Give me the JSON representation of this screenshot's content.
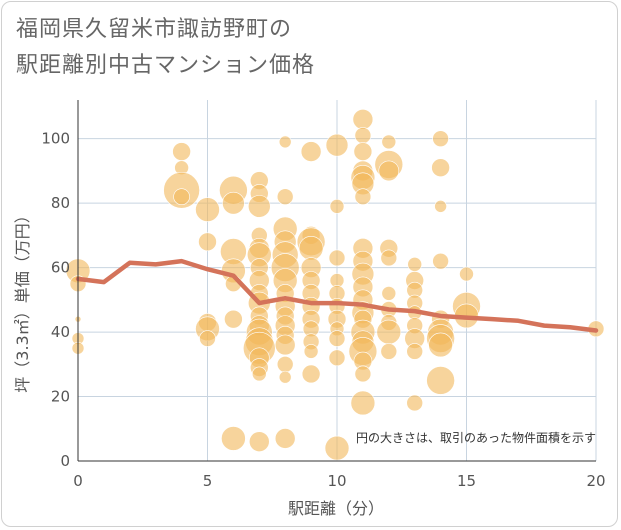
{
  "chart_data": {
    "type": "scatter",
    "title_line1": "福岡県久留米市諏訪野町の",
    "title_line2": "駅距離別中古マンション価格",
    "xlabel": "駅距離（分）",
    "ylabel": "坪（3.3㎡）単価（万円）",
    "note": "円の大きさは、取引のあった物件面積を示す",
    "xlim": [
      0,
      20
    ],
    "ylim": [
      0,
      112
    ],
    "xticks": [
      0,
      5,
      10,
      15,
      20
    ],
    "yticks": [
      0,
      20,
      40,
      60,
      80,
      100
    ],
    "grid": true,
    "colors": {
      "bubble": "#f2b85a",
      "line": "#d4735a",
      "grid": "#c8d4e0",
      "axis": "#333333"
    },
    "points": [
      {
        "x": 0,
        "y": 59,
        "s": 12
      },
      {
        "x": 0,
        "y": 55,
        "s": 8
      },
      {
        "x": 0,
        "y": 38,
        "s": 6
      },
      {
        "x": 0,
        "y": 35,
        "s": 6
      },
      {
        "x": 0,
        "y": 44,
        "s": 3
      },
      {
        "x": 4,
        "y": 96,
        "s": 9
      },
      {
        "x": 4,
        "y": 91,
        "s": 7
      },
      {
        "x": 4,
        "y": 84,
        "s": 18
      },
      {
        "x": 4,
        "y": 82,
        "s": 8
      },
      {
        "x": 5,
        "y": 78,
        "s": 12
      },
      {
        "x": 5,
        "y": 68,
        "s": 9
      },
      {
        "x": 5,
        "y": 43,
        "s": 9
      },
      {
        "x": 5,
        "y": 41,
        "s": 12
      },
      {
        "x": 5,
        "y": 38,
        "s": 8
      },
      {
        "x": 6,
        "y": 84,
        "s": 14
      },
      {
        "x": 6,
        "y": 80,
        "s": 11
      },
      {
        "x": 6,
        "y": 65,
        "s": 13
      },
      {
        "x": 6,
        "y": 59,
        "s": 12
      },
      {
        "x": 6,
        "y": 55,
        "s": 8
      },
      {
        "x": 6,
        "y": 44,
        "s": 9
      },
      {
        "x": 6,
        "y": 7,
        "s": 12
      },
      {
        "x": 7,
        "y": 87,
        "s": 9
      },
      {
        "x": 7,
        "y": 83,
        "s": 9
      },
      {
        "x": 7,
        "y": 79,
        "s": 11
      },
      {
        "x": 7,
        "y": 70,
        "s": 8
      },
      {
        "x": 7,
        "y": 66,
        "s": 10
      },
      {
        "x": 7,
        "y": 64,
        "s": 12
      },
      {
        "x": 7,
        "y": 60,
        "s": 9
      },
      {
        "x": 7,
        "y": 56,
        "s": 10
      },
      {
        "x": 7,
        "y": 52,
        "s": 9
      },
      {
        "x": 7,
        "y": 49,
        "s": 11
      },
      {
        "x": 7,
        "y": 45,
        "s": 9
      },
      {
        "x": 7,
        "y": 42,
        "s": 10
      },
      {
        "x": 7,
        "y": 40,
        "s": 13
      },
      {
        "x": 7,
        "y": 37,
        "s": 14
      },
      {
        "x": 7,
        "y": 35,
        "s": 16
      },
      {
        "x": 7,
        "y": 32,
        "s": 10
      },
      {
        "x": 7,
        "y": 29,
        "s": 9
      },
      {
        "x": 7,
        "y": 27,
        "s": 7
      },
      {
        "x": 7,
        "y": 6,
        "s": 10
      },
      {
        "x": 8,
        "y": 99,
        "s": 6
      },
      {
        "x": 8,
        "y": 82,
        "s": 8
      },
      {
        "x": 8,
        "y": 72,
        "s": 12
      },
      {
        "x": 8,
        "y": 68,
        "s": 11
      },
      {
        "x": 8,
        "y": 64,
        "s": 13
      },
      {
        "x": 8,
        "y": 60,
        "s": 14
      },
      {
        "x": 8,
        "y": 56,
        "s": 12
      },
      {
        "x": 8,
        "y": 52,
        "s": 9
      },
      {
        "x": 8,
        "y": 48,
        "s": 10
      },
      {
        "x": 8,
        "y": 45,
        "s": 9
      },
      {
        "x": 8,
        "y": 42,
        "s": 10
      },
      {
        "x": 8,
        "y": 39,
        "s": 9
      },
      {
        "x": 8,
        "y": 36,
        "s": 10
      },
      {
        "x": 8,
        "y": 30,
        "s": 8
      },
      {
        "x": 8,
        "y": 26,
        "s": 6
      },
      {
        "x": 8,
        "y": 7,
        "s": 10
      },
      {
        "x": 9,
        "y": 96,
        "s": 10
      },
      {
        "x": 9,
        "y": 70,
        "s": 9
      },
      {
        "x": 9,
        "y": 68,
        "s": 14
      },
      {
        "x": 9,
        "y": 66,
        "s": 12
      },
      {
        "x": 9,
        "y": 60,
        "s": 10
      },
      {
        "x": 9,
        "y": 56,
        "s": 9
      },
      {
        "x": 9,
        "y": 52,
        "s": 9
      },
      {
        "x": 9,
        "y": 48,
        "s": 9
      },
      {
        "x": 9,
        "y": 44,
        "s": 9
      },
      {
        "x": 9,
        "y": 41,
        "s": 8
      },
      {
        "x": 9,
        "y": 37,
        "s": 8
      },
      {
        "x": 9,
        "y": 34,
        "s": 7
      },
      {
        "x": 9,
        "y": 27,
        "s": 9
      },
      {
        "x": 10,
        "y": 98,
        "s": 11
      },
      {
        "x": 10,
        "y": 79,
        "s": 7
      },
      {
        "x": 10,
        "y": 63,
        "s": 8
      },
      {
        "x": 10,
        "y": 56,
        "s": 7
      },
      {
        "x": 10,
        "y": 52,
        "s": 8
      },
      {
        "x": 10,
        "y": 48,
        "s": 8
      },
      {
        "x": 10,
        "y": 44,
        "s": 9
      },
      {
        "x": 10,
        "y": 41,
        "s": 7
      },
      {
        "x": 10,
        "y": 38,
        "s": 8
      },
      {
        "x": 10,
        "y": 32,
        "s": 8
      },
      {
        "x": 10,
        "y": 4,
        "s": 12
      },
      {
        "x": 11,
        "y": 106,
        "s": 10
      },
      {
        "x": 11,
        "y": 101,
        "s": 8
      },
      {
        "x": 11,
        "y": 96,
        "s": 9
      },
      {
        "x": 11,
        "y": 90,
        "s": 10
      },
      {
        "x": 11,
        "y": 88,
        "s": 12
      },
      {
        "x": 11,
        "y": 86,
        "s": 11
      },
      {
        "x": 11,
        "y": 82,
        "s": 8
      },
      {
        "x": 11,
        "y": 66,
        "s": 10
      },
      {
        "x": 11,
        "y": 62,
        "s": 10
      },
      {
        "x": 11,
        "y": 58,
        "s": 11
      },
      {
        "x": 11,
        "y": 54,
        "s": 10
      },
      {
        "x": 11,
        "y": 50,
        "s": 10
      },
      {
        "x": 11,
        "y": 46,
        "s": 11
      },
      {
        "x": 11,
        "y": 44,
        "s": 9
      },
      {
        "x": 11,
        "y": 40,
        "s": 12
      },
      {
        "x": 11,
        "y": 37,
        "s": 11
      },
      {
        "x": 11,
        "y": 34,
        "s": 14
      },
      {
        "x": 11,
        "y": 31,
        "s": 9
      },
      {
        "x": 11,
        "y": 27,
        "s": 8
      },
      {
        "x": 11,
        "y": 18,
        "s": 12
      },
      {
        "x": 12,
        "y": 99,
        "s": 7
      },
      {
        "x": 12,
        "y": 92,
        "s": 14
      },
      {
        "x": 12,
        "y": 90,
        "s": 10
      },
      {
        "x": 12,
        "y": 66,
        "s": 9
      },
      {
        "x": 12,
        "y": 63,
        "s": 8
      },
      {
        "x": 12,
        "y": 52,
        "s": 7
      },
      {
        "x": 12,
        "y": 47,
        "s": 8
      },
      {
        "x": 12,
        "y": 43,
        "s": 8
      },
      {
        "x": 12,
        "y": 40,
        "s": 12
      },
      {
        "x": 12,
        "y": 34,
        "s": 8
      },
      {
        "x": 13,
        "y": 61,
        "s": 7
      },
      {
        "x": 13,
        "y": 56,
        "s": 9
      },
      {
        "x": 13,
        "y": 53,
        "s": 8
      },
      {
        "x": 13,
        "y": 49,
        "s": 8
      },
      {
        "x": 13,
        "y": 46,
        "s": 7
      },
      {
        "x": 13,
        "y": 42,
        "s": 8
      },
      {
        "x": 13,
        "y": 38,
        "s": 10
      },
      {
        "x": 13,
        "y": 34,
        "s": 8
      },
      {
        "x": 13,
        "y": 18,
        "s": 8
      },
      {
        "x": 14,
        "y": 100,
        "s": 8
      },
      {
        "x": 14,
        "y": 91,
        "s": 9
      },
      {
        "x": 14,
        "y": 79,
        "s": 6
      },
      {
        "x": 14,
        "y": 62,
        "s": 8
      },
      {
        "x": 14,
        "y": 44,
        "s": 9
      },
      {
        "x": 14,
        "y": 40,
        "s": 13
      },
      {
        "x": 14,
        "y": 38,
        "s": 14
      },
      {
        "x": 14,
        "y": 36,
        "s": 12
      },
      {
        "x": 14,
        "y": 25,
        "s": 14
      },
      {
        "x": 15,
        "y": 58,
        "s": 7
      },
      {
        "x": 15,
        "y": 48,
        "s": 14
      },
      {
        "x": 15,
        "y": 45,
        "s": 12
      },
      {
        "x": 20,
        "y": 41,
        "s": 8
      }
    ],
    "trend": {
      "x": [
        0,
        1,
        2,
        3,
        4,
        5,
        6,
        7,
        8,
        9,
        10,
        11,
        12,
        13,
        14,
        15,
        16,
        17,
        18,
        19,
        20
      ],
      "y": [
        56.5,
        55.5,
        61.5,
        61,
        62,
        59.5,
        57.5,
        49,
        50.5,
        49,
        49,
        48.5,
        47,
        46.5,
        45,
        44.5,
        44,
        43.5,
        42,
        41.5,
        40.5
      ]
    }
  }
}
